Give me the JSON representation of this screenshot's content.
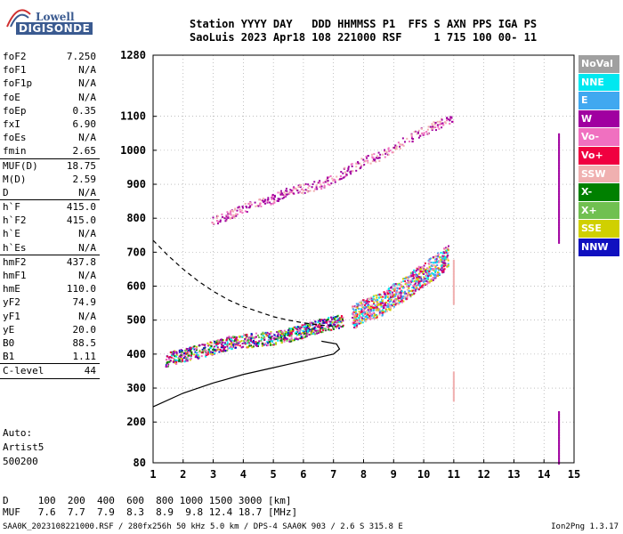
{
  "logo": {
    "line1": "Lowell",
    "line2": "DIGISONDE"
  },
  "header": {
    "line1": "Station YYYY DAY   DDD HHMMSS P1  FFS S AXN PPS IGA PS",
    "line2": "SaoLuis 2023 Apr18 108 221000 RSF     1 715 100 00- 11"
  },
  "params_group1": [
    {
      "k": "foF2",
      "v": "7.250"
    },
    {
      "k": "foF1",
      "v": "N/A"
    },
    {
      "k": "foF1p",
      "v": "N/A"
    },
    {
      "k": "foE",
      "v": "N/A"
    },
    {
      "k": "foEp",
      "v": "0.35"
    },
    {
      "k": "fxI",
      "v": "6.90"
    },
    {
      "k": "foEs",
      "v": "N/A"
    },
    {
      "k": "fmin",
      "v": "2.65"
    }
  ],
  "params_group2": [
    {
      "k": "MUF(D)",
      "v": "18.75"
    },
    {
      "k": "M(D)",
      "v": "2.59"
    },
    {
      "k": "D",
      "v": "N/A"
    }
  ],
  "params_group3": [
    {
      "k": "h`F",
      "v": "415.0"
    },
    {
      "k": "h`F2",
      "v": "415.0"
    },
    {
      "k": "h`E",
      "v": "N/A"
    },
    {
      "k": "h`Es",
      "v": "N/A"
    }
  ],
  "params_group4": [
    {
      "k": "hmF2",
      "v": "437.8"
    },
    {
      "k": "hmF1",
      "v": "N/A"
    },
    {
      "k": "hmE",
      "v": "110.0"
    },
    {
      "k": "yF2",
      "v": "74.9"
    },
    {
      "k": "yF1",
      "v": "N/A"
    },
    {
      "k": "yE",
      "v": "20.0"
    },
    {
      "k": "B0",
      "v": "88.5"
    },
    {
      "k": "B1",
      "v": "1.11"
    }
  ],
  "params_group5": [
    {
      "k": "C-level",
      "v": "44"
    }
  ],
  "autoscale": {
    "l1": "Auto:",
    "l2": "Artist5",
    "l3": "500200"
  },
  "footer": {
    "d_row": "D     100  200  400  600  800 1000 1500 3000 [km]",
    "muf_row": "MUF   7.6  7.7  7.9  8.3  8.9  9.8 12.4 18.7 [MHz]"
  },
  "bottom": {
    "left": "SAA0K_2023108221000.RSF / 280fx256h 50 kHz 5.0 km / DPS-4 SAA0K 903 / 2.6 S 315.8 E",
    "right": "Ion2Png 1.3.17"
  },
  "legend": [
    {
      "label": "NoVal",
      "color": "#a0a0a0"
    },
    {
      "label": "NNE",
      "color": "#00e8f0"
    },
    {
      "label": "E",
      "color": "#40a8f0"
    },
    {
      "label": "W",
      "color": "#a000a0"
    },
    {
      "label": "Vo-",
      "color": "#f070c0"
    },
    {
      "label": "Vo+",
      "color": "#f00040"
    },
    {
      "label": "SSW",
      "color": "#f0b0b0"
    },
    {
      "label": "X-",
      "color": "#008000"
    },
    {
      "label": "X+",
      "color": "#70c050"
    },
    {
      "label": "SSE",
      "color": "#d0d000"
    },
    {
      "label": "NNW",
      "color": "#1010c0"
    }
  ],
  "chart_data": {
    "type": "scatter",
    "title": "",
    "xlabel": "",
    "ylabel": "",
    "xlim": [
      1,
      15
    ],
    "ylim": [
      80,
      1280
    ],
    "x_ticks": [
      1,
      2,
      3,
      4,
      5,
      6,
      7,
      8,
      9,
      10,
      11,
      12,
      13,
      14,
      15
    ],
    "y_ticks": [
      80,
      200,
      300,
      400,
      500,
      600,
      700,
      800,
      900,
      1000,
      1100,
      1280
    ],
    "grid": "dotted",
    "traces": [
      {
        "name": "o-trace low",
        "points": [
          [
            1.4,
            385
          ],
          [
            2.0,
            400
          ],
          [
            2.5,
            410
          ],
          [
            3.0,
            420
          ],
          [
            3.5,
            435
          ],
          [
            4.0,
            440
          ],
          [
            4.5,
            445
          ],
          [
            5.0,
            450
          ],
          [
            5.5,
            458
          ],
          [
            6.0,
            470
          ],
          [
            6.5,
            485
          ],
          [
            7.0,
            495
          ],
          [
            7.3,
            500
          ]
        ]
      },
      {
        "name": "x-trace cluster",
        "points": [
          [
            7.6,
            510
          ],
          [
            8.0,
            530
          ],
          [
            8.5,
            545
          ],
          [
            9.0,
            575
          ],
          [
            9.3,
            590
          ],
          [
            9.8,
            625
          ],
          [
            10.3,
            655
          ],
          [
            10.8,
            690
          ]
        ]
      },
      {
        "name": "upper 2-hop",
        "points": [
          [
            2.9,
            790
          ],
          [
            3.5,
            810
          ],
          [
            4.0,
            830
          ],
          [
            4.5,
            845
          ],
          [
            5.0,
            860
          ],
          [
            5.5,
            880
          ],
          [
            6.0,
            890
          ],
          [
            6.5,
            900
          ],
          [
            7.0,
            920
          ],
          [
            7.5,
            945
          ],
          [
            8.0,
            970
          ],
          [
            8.5,
            985
          ],
          [
            9.0,
            1010
          ],
          [
            9.5,
            1035
          ],
          [
            10.0,
            1060
          ],
          [
            10.5,
            1080
          ],
          [
            11.0,
            1100
          ]
        ]
      }
    ],
    "profile": {
      "name": "electron density profile",
      "points": [
        [
          1.0,
          245
        ],
        [
          2.0,
          285
        ],
        [
          3.0,
          315
        ],
        [
          4.0,
          340
        ],
        [
          5.0,
          360
        ],
        [
          5.5,
          370
        ],
        [
          6.0,
          380
        ],
        [
          6.5,
          390
        ],
        [
          7.0,
          400
        ],
        [
          7.2,
          415
        ],
        [
          7.1,
          430
        ],
        [
          6.6,
          438
        ]
      ]
    },
    "model_curve": {
      "name": "dashed curve",
      "points": [
        [
          1.0,
          735
        ],
        [
          1.5,
          690
        ],
        [
          2.0,
          650
        ],
        [
          2.5,
          615
        ],
        [
          3.0,
          585
        ],
        [
          3.5,
          560
        ],
        [
          4.0,
          540
        ],
        [
          4.5,
          525
        ],
        [
          5.0,
          510
        ],
        [
          5.5,
          500
        ],
        [
          6.0,
          492
        ],
        [
          6.5,
          486
        ],
        [
          7.0,
          482
        ]
      ]
    },
    "vertical_traces": [
      {
        "x": 11.0,
        "y_range": [
          265,
          350
        ],
        "color": "#f0b0b0"
      },
      {
        "x": 11.0,
        "y_range": [
          550,
          680
        ],
        "color": "#f0b0b0"
      },
      {
        "x": 14.5,
        "y_range": [
          730,
          1050
        ],
        "color": "#a000a0"
      },
      {
        "x": 14.5,
        "y_range": [
          80,
          235
        ],
        "color": "#a000a0"
      }
    ]
  }
}
